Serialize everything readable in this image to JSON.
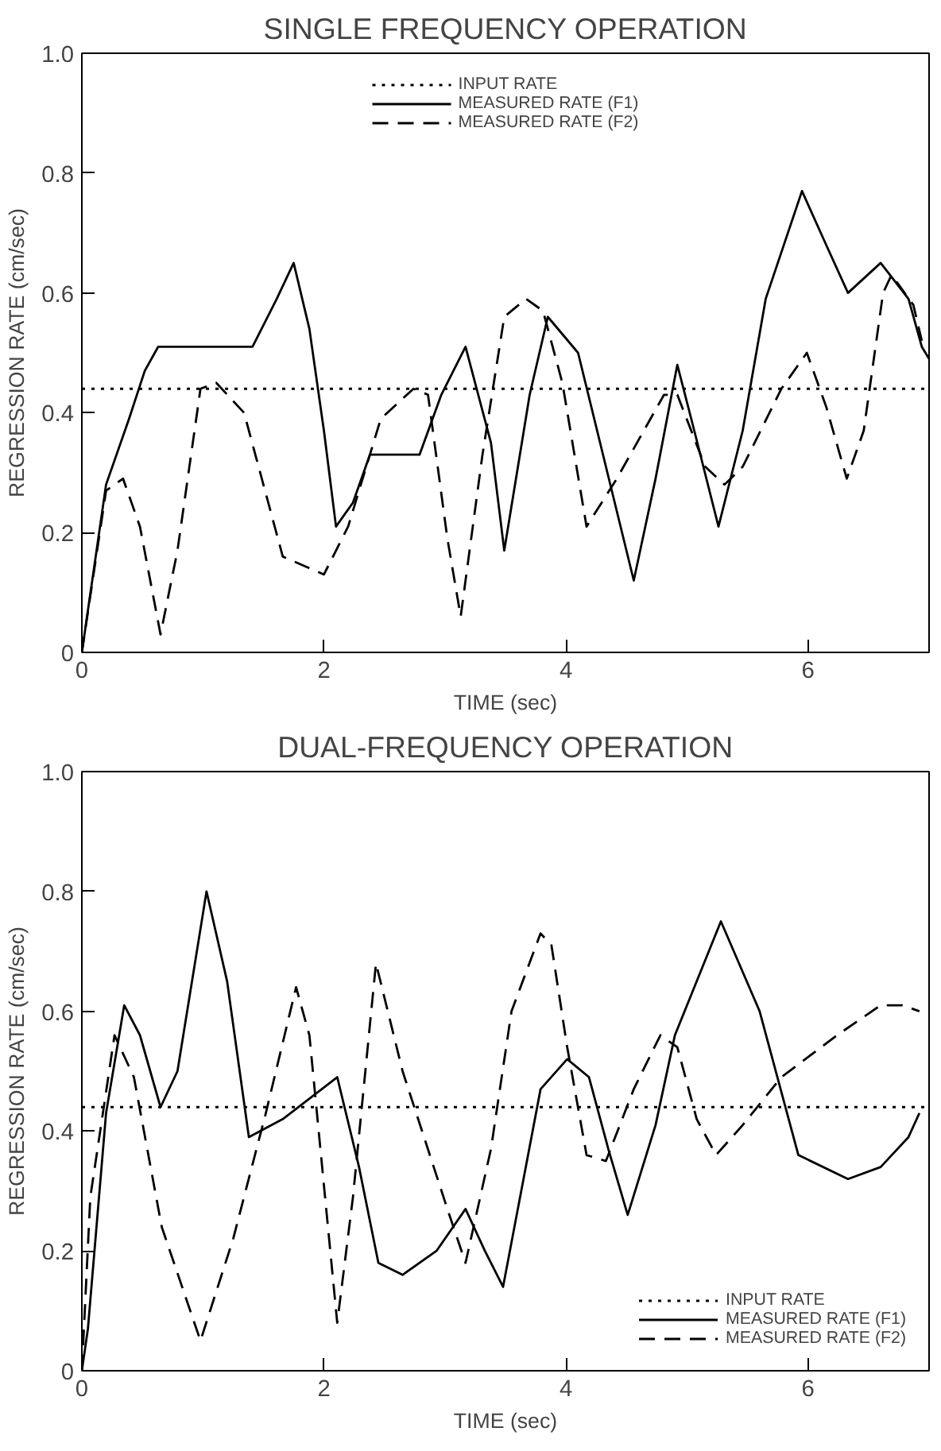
{
  "chart_data": [
    {
      "type": "line",
      "title": "SINGLE FREQUENCY OPERATION",
      "xlabel": "TIME (sec)",
      "ylabel": "REGRESSION RATE (cm/sec)",
      "xlim": [
        0,
        7
      ],
      "ylim": [
        0,
        1
      ],
      "xticks": [
        0,
        2,
        4,
        6
      ],
      "yticks": [
        0,
        0.2,
        0.4,
        0.6,
        0.8,
        {
          "value": 1,
          "label": "1.0"
        }
      ],
      "grid": false,
      "legend": "top",
      "marker": "none",
      "series": [
        {
          "name": "INPUT RATE",
          "color": "#000000",
          "line_style": "dotted",
          "x": [
            0,
            7
          ],
          "values": [
            0.44,
            0.44
          ]
        },
        {
          "name": "MEASURED RATE (F1)",
          "color": "#000000",
          "line_style": "solid",
          "x": [
            0,
            0.2,
            0.39,
            0.52,
            0.63,
            1.41,
            1.61,
            1.75,
            1.88,
            2.0,
            2.1,
            2.24,
            2.38,
            2.79,
            2.97,
            3.17,
            3.38,
            3.49,
            3.7,
            3.85,
            4.1,
            4.33,
            4.56,
            4.74,
            4.92,
            5.06,
            5.26,
            5.46,
            5.65,
            5.95,
            6.15,
            6.33,
            6.6,
            6.83,
            6.94,
            7
          ],
          "values": [
            0,
            0.28,
            0.39,
            0.47,
            0.51,
            0.51,
            0.59,
            0.65,
            0.54,
            0.37,
            0.21,
            0.25,
            0.33,
            0.33,
            0.43,
            0.51,
            0.35,
            0.17,
            0.43,
            0.56,
            0.5,
            0.31,
            0.12,
            0.29,
            0.48,
            0.37,
            0.21,
            0.37,
            0.59,
            0.77,
            0.68,
            0.6,
            0.65,
            0.59,
            0.51,
            0.49
          ]
        },
        {
          "name": "MEASURED RATE (F2)",
          "color": "#000000",
          "line_style": "dashed",
          "x": [
            0,
            0.2,
            0.34,
            0.48,
            0.65,
            0.79,
            0.98,
            1.11,
            1.34,
            1.66,
            2.0,
            2.2,
            2.47,
            2.74,
            2.86,
            3.02,
            3.13,
            3.31,
            3.49,
            3.67,
            3.81,
            3.97,
            4.17,
            4.42,
            4.81,
            4.92,
            5.15,
            5.31,
            5.46,
            5.78,
            5.99,
            6.15,
            6.32,
            6.46,
            6.62,
            6.69,
            6.87,
            6.94
          ],
          "values": [
            0,
            0.27,
            0.29,
            0.21,
            0.03,
            0.17,
            0.44,
            0.45,
            0.4,
            0.16,
            0.13,
            0.21,
            0.39,
            0.44,
            0.43,
            0.19,
            0.06,
            0.33,
            0.56,
            0.59,
            0.57,
            0.45,
            0.21,
            0.29,
            0.43,
            0.43,
            0.31,
            0.28,
            0.31,
            0.44,
            0.5,
            0.41,
            0.29,
            0.37,
            0.6,
            0.63,
            0.58,
            0.52
          ]
        }
      ]
    },
    {
      "type": "line",
      "title": "DUAL-FREQUENCY OPERATION",
      "xlabel": "TIME (sec)",
      "ylabel": "REGRESSION RATE (cm/sec)",
      "xlim": [
        0,
        7
      ],
      "ylim": [
        0,
        1
      ],
      "xticks": [
        0,
        2,
        4,
        6
      ],
      "yticks": [
        0,
        0.2,
        0.4,
        0.6,
        0.8,
        {
          "value": 1,
          "label": "1.0"
        }
      ],
      "grid": false,
      "legend": "bottom right",
      "marker": "none",
      "series": [
        {
          "name": "INPUT RATE",
          "color": "#000000",
          "line_style": "dotted",
          "x": [
            0,
            7
          ],
          "values": [
            0.44,
            0.44
          ]
        },
        {
          "name": "MEASURED RATE (F1)",
          "color": "#000000",
          "line_style": "solid",
          "x": [
            0,
            0.05,
            0.2,
            0.35,
            0.48,
            0.65,
            0.79,
            1.03,
            1.2,
            1.38,
            1.66,
            2.11,
            2.29,
            2.45,
            2.65,
            2.93,
            3.17,
            3.33,
            3.48,
            3.79,
            4.01,
            4.19,
            4.35,
            4.51,
            4.74,
            4.9,
            5.28,
            5.6,
            5.92,
            6.33,
            6.6,
            6.83,
            6.92
          ],
          "values": [
            0,
            0.07,
            0.43,
            0.61,
            0.56,
            0.44,
            0.5,
            0.8,
            0.65,
            0.39,
            0.42,
            0.49,
            0.34,
            0.18,
            0.16,
            0.2,
            0.27,
            0.2,
            0.14,
            0.47,
            0.52,
            0.49,
            0.37,
            0.26,
            0.41,
            0.56,
            0.75,
            0.6,
            0.36,
            0.32,
            0.34,
            0.39,
            0.43
          ]
        },
        {
          "name": "MEASURED RATE (F2)",
          "color": "#000000",
          "line_style": "dashed",
          "x": [
            0,
            0.07,
            0.27,
            0.43,
            0.66,
            0.98,
            1.25,
            1.52,
            1.77,
            1.88,
            2.11,
            2.24,
            2.43,
            2.65,
            3.02,
            3.17,
            3.38,
            3.55,
            3.79,
            3.88,
            4.01,
            4.17,
            4.33,
            4.56,
            4.78,
            4.92,
            5.08,
            5.24,
            5.46,
            5.78,
            6.24,
            6.6,
            6.78,
            6.92
          ],
          "values": [
            0,
            0.29,
            0.56,
            0.49,
            0.24,
            0.05,
            0.22,
            0.43,
            0.64,
            0.56,
            0.08,
            0.29,
            0.68,
            0.5,
            0.27,
            0.18,
            0.37,
            0.6,
            0.73,
            0.71,
            0.54,
            0.36,
            0.35,
            0.47,
            0.56,
            0.54,
            0.42,
            0.36,
            0.41,
            0.49,
            0.56,
            0.61,
            0.61,
            0.6
          ]
        }
      ]
    }
  ]
}
